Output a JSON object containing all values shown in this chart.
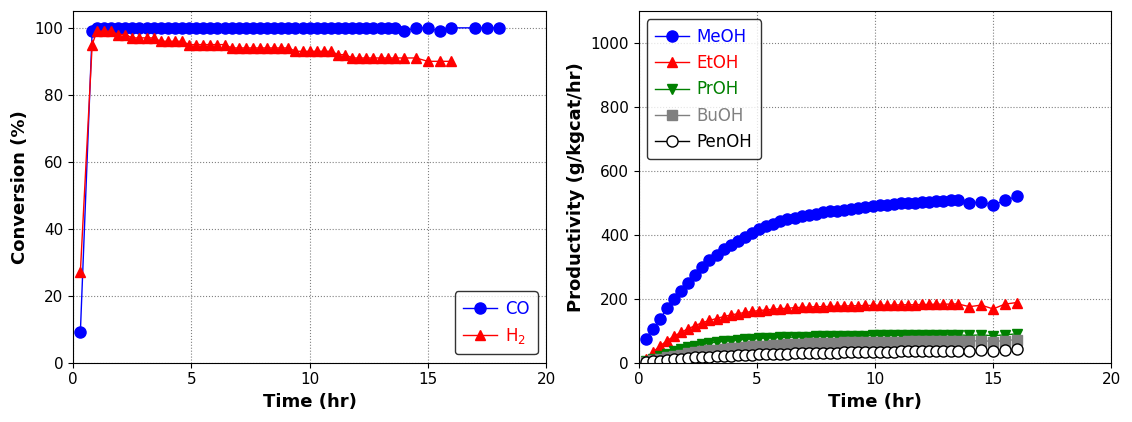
{
  "left_chart": {
    "xlabel": "Time (hr)",
    "ylabel": "Conversion (%)",
    "xlim": [
      0,
      20
    ],
    "ylim": [
      0,
      105
    ],
    "yticks": [
      0,
      20,
      40,
      60,
      80,
      100
    ],
    "xticks": [
      0,
      5,
      10,
      15,
      20
    ],
    "CO_time": [
      0.3,
      0.8,
      1.0,
      1.3,
      1.6,
      1.9,
      2.2,
      2.5,
      2.8,
      3.1,
      3.4,
      3.7,
      4.0,
      4.3,
      4.6,
      4.9,
      5.2,
      5.5,
      5.8,
      6.1,
      6.4,
      6.7,
      7.0,
      7.3,
      7.6,
      7.9,
      8.2,
      8.5,
      8.8,
      9.1,
      9.4,
      9.7,
      10.0,
      10.3,
      10.6,
      10.9,
      11.2,
      11.5,
      11.8,
      12.1,
      12.4,
      12.7,
      13.0,
      13.3,
      13.6,
      14.0,
      14.5,
      15.0,
      15.5,
      16.0,
      17.0,
      17.5,
      18.0
    ],
    "CO_val": [
      9,
      99,
      100,
      100,
      100,
      100,
      100,
      100,
      100,
      100,
      100,
      100,
      100,
      100,
      100,
      100,
      100,
      100,
      100,
      100,
      100,
      100,
      100,
      100,
      100,
      100,
      100,
      100,
      100,
      100,
      100,
      100,
      100,
      100,
      100,
      100,
      100,
      100,
      100,
      100,
      100,
      100,
      100,
      100,
      100,
      99,
      100,
      100,
      99,
      100,
      100,
      100,
      100
    ],
    "H2_time": [
      0.3,
      0.8,
      1.0,
      1.3,
      1.6,
      1.9,
      2.2,
      2.5,
      2.8,
      3.1,
      3.4,
      3.7,
      4.0,
      4.3,
      4.6,
      4.9,
      5.2,
      5.5,
      5.8,
      6.1,
      6.4,
      6.7,
      7.0,
      7.3,
      7.6,
      7.9,
      8.2,
      8.5,
      8.8,
      9.1,
      9.4,
      9.7,
      10.0,
      10.3,
      10.6,
      10.9,
      11.2,
      11.5,
      11.8,
      12.1,
      12.4,
      12.7,
      13.0,
      13.3,
      13.6,
      14.0,
      14.5,
      15.0,
      15.5,
      16.0
    ],
    "H2_val": [
      27,
      95,
      99,
      99,
      99,
      98,
      98,
      97,
      97,
      97,
      97,
      96,
      96,
      96,
      96,
      95,
      95,
      95,
      95,
      95,
      95,
      94,
      94,
      94,
      94,
      94,
      94,
      94,
      94,
      94,
      93,
      93,
      93,
      93,
      93,
      93,
      92,
      92,
      91,
      91,
      91,
      91,
      91,
      91,
      91,
      91,
      91,
      90,
      90,
      90
    ],
    "CO_color": "#0000FF",
    "H2_color": "#FF0000",
    "legend_CO": "CO",
    "legend_H2": "H$_2$"
  },
  "right_chart": {
    "xlabel": "Time (hr)",
    "ylabel": "Productivity (g/kgcat/hr)",
    "xlim": [
      0,
      20
    ],
    "ylim": [
      0,
      1100
    ],
    "yticks": [
      0,
      200,
      400,
      600,
      800,
      1000
    ],
    "xticks": [
      0,
      5,
      10,
      15,
      20
    ],
    "MeOH_time": [
      0.3,
      0.6,
      0.9,
      1.2,
      1.5,
      1.8,
      2.1,
      2.4,
      2.7,
      3.0,
      3.3,
      3.6,
      3.9,
      4.2,
      4.5,
      4.8,
      5.1,
      5.4,
      5.7,
      6.0,
      6.3,
      6.6,
      6.9,
      7.2,
      7.5,
      7.8,
      8.1,
      8.4,
      8.7,
      9.0,
      9.3,
      9.6,
      9.9,
      10.2,
      10.5,
      10.8,
      11.1,
      11.4,
      11.7,
      12.0,
      12.3,
      12.6,
      12.9,
      13.2,
      13.5,
      14.0,
      14.5,
      15.0,
      15.5,
      16.0
    ],
    "MeOH_val": [
      75,
      105,
      135,
      170,
      200,
      225,
      248,
      275,
      300,
      320,
      338,
      355,
      368,
      380,
      393,
      407,
      418,
      428,
      435,
      442,
      448,
      453,
      458,
      462,
      466,
      470,
      473,
      476,
      479,
      482,
      485,
      488,
      490,
      492,
      494,
      496,
      498,
      500,
      500,
      502,
      504,
      505,
      506,
      508,
      510,
      498,
      504,
      492,
      508,
      520
    ],
    "EtOH_time": [
      0.3,
      0.6,
      0.9,
      1.2,
      1.5,
      1.8,
      2.1,
      2.4,
      2.7,
      3.0,
      3.3,
      3.6,
      3.9,
      4.2,
      4.5,
      4.8,
      5.1,
      5.4,
      5.7,
      6.0,
      6.3,
      6.6,
      6.9,
      7.2,
      7.5,
      7.8,
      8.1,
      8.4,
      8.7,
      9.0,
      9.3,
      9.6,
      9.9,
      10.2,
      10.5,
      10.8,
      11.1,
      11.4,
      11.7,
      12.0,
      12.3,
      12.6,
      12.9,
      13.2,
      13.5,
      14.0,
      14.5,
      15.0,
      15.5,
      16.0
    ],
    "EtOH_val": [
      12,
      32,
      52,
      68,
      83,
      95,
      106,
      116,
      125,
      132,
      138,
      144,
      149,
      153,
      157,
      160,
      163,
      165,
      167,
      169,
      170,
      172,
      173,
      174,
      175,
      175,
      176,
      177,
      177,
      178,
      178,
      179,
      179,
      180,
      180,
      180,
      181,
      181,
      181,
      182,
      182,
      183,
      183,
      183,
      184,
      175,
      180,
      168,
      183,
      188
    ],
    "PrOH_time": [
      0.3,
      0.6,
      0.9,
      1.2,
      1.5,
      1.8,
      2.1,
      2.4,
      2.7,
      3.0,
      3.3,
      3.6,
      3.9,
      4.2,
      4.5,
      4.8,
      5.1,
      5.4,
      5.7,
      6.0,
      6.3,
      6.6,
      6.9,
      7.2,
      7.5,
      7.8,
      8.1,
      8.4,
      8.7,
      9.0,
      9.3,
      9.6,
      9.9,
      10.2,
      10.5,
      10.8,
      11.1,
      11.4,
      11.7,
      12.0,
      12.3,
      12.6,
      12.9,
      13.2,
      13.5,
      14.0,
      14.5,
      15.0,
      15.5,
      16.0
    ],
    "PrOH_val": [
      5,
      12,
      20,
      28,
      36,
      43,
      48,
      53,
      57,
      61,
      64,
      67,
      69,
      71,
      73,
      74,
      76,
      77,
      78,
      79,
      79,
      80,
      81,
      81,
      82,
      82,
      83,
      83,
      83,
      84,
      84,
      84,
      85,
      85,
      85,
      85,
      86,
      86,
      86,
      86,
      86,
      87,
      87,
      87,
      87,
      85,
      87,
      84,
      87,
      90
    ],
    "BuOH_time": [
      0.3,
      0.6,
      0.9,
      1.2,
      1.5,
      1.8,
      2.1,
      2.4,
      2.7,
      3.0,
      3.3,
      3.6,
      3.9,
      4.2,
      4.5,
      4.8,
      5.1,
      5.4,
      5.7,
      6.0,
      6.3,
      6.6,
      6.9,
      7.2,
      7.5,
      7.8,
      8.1,
      8.4,
      8.7,
      9.0,
      9.3,
      9.6,
      9.9,
      10.2,
      10.5,
      10.8,
      11.1,
      11.4,
      11.7,
      12.0,
      12.3,
      12.6,
      12.9,
      13.2,
      13.5,
      14.0,
      14.5,
      15.0,
      15.5,
      16.0
    ],
    "BuOH_val": [
      3,
      7,
      12,
      17,
      21,
      25,
      29,
      33,
      36,
      39,
      41,
      43,
      45,
      47,
      49,
      51,
      52,
      53,
      55,
      56,
      57,
      58,
      59,
      60,
      60,
      61,
      62,
      62,
      63,
      63,
      64,
      64,
      65,
      65,
      65,
      66,
      66,
      67,
      67,
      67,
      68,
      68,
      68,
      69,
      69,
      67,
      69,
      66,
      69,
      72
    ],
    "PenOH_time": [
      0.3,
      0.6,
      0.9,
      1.2,
      1.5,
      1.8,
      2.1,
      2.4,
      2.7,
      3.0,
      3.3,
      3.6,
      3.9,
      4.2,
      4.5,
      4.8,
      5.1,
      5.4,
      5.7,
      6.0,
      6.3,
      6.6,
      6.9,
      7.2,
      7.5,
      7.8,
      8.1,
      8.4,
      8.7,
      9.0,
      9.3,
      9.6,
      9.9,
      10.2,
      10.5,
      10.8,
      11.1,
      11.4,
      11.7,
      12.0,
      12.3,
      12.6,
      12.9,
      13.2,
      13.5,
      14.0,
      14.5,
      15.0,
      15.5,
      16.0
    ],
    "PenOH_val": [
      2,
      4,
      6,
      8,
      10,
      12,
      14,
      16,
      17,
      19,
      20,
      21,
      22,
      23,
      24,
      25,
      26,
      27,
      27,
      28,
      28,
      29,
      29,
      30,
      30,
      31,
      31,
      31,
      32,
      32,
      33,
      33,
      33,
      34,
      34,
      34,
      35,
      35,
      35,
      36,
      36,
      36,
      37,
      37,
      37,
      36,
      38,
      36,
      39,
      42
    ],
    "MeOH_color": "#0000FF",
    "EtOH_color": "#FF0000",
    "PrOH_color": "#008000",
    "BuOH_color": "#808080",
    "PenOH_color": "#000000",
    "BuOH_line_color": "#808080"
  }
}
